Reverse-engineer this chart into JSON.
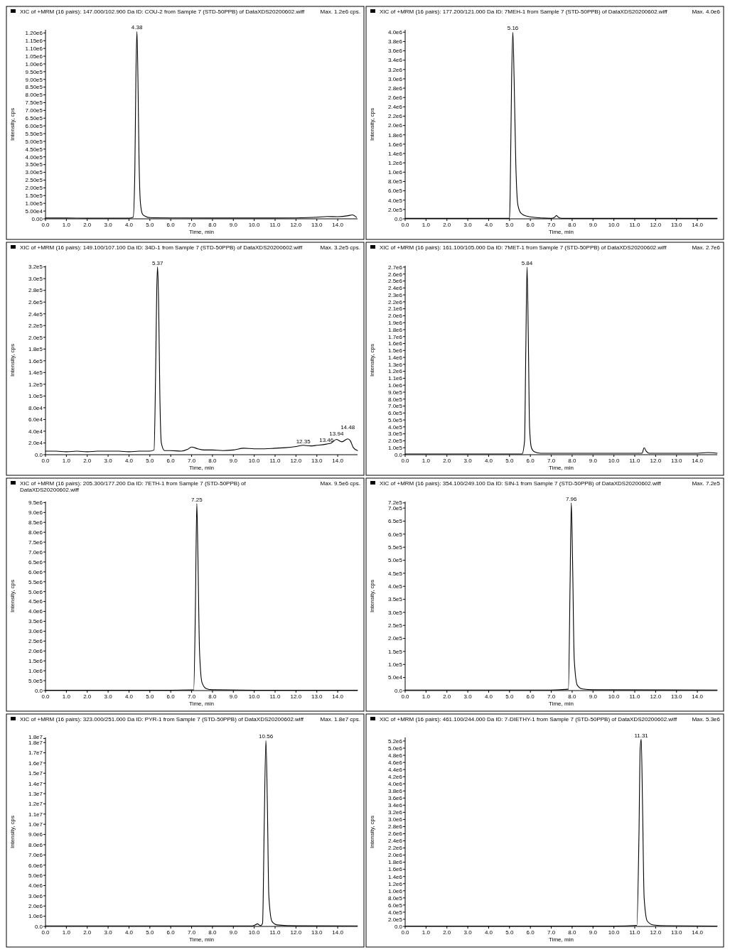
{
  "chart_data": [
    {
      "type": "line",
      "title": "XIC of +MRM (16 pairs): 147.000/102.900 Da ID: COU-2 from Sample 7 (STD-50PPB) of DataXDS20200602.wiff",
      "subtitle": "Max. 1.2e6 cps.",
      "xlabel": "Time, min",
      "ylabel": "Intensity, cps",
      "series": [
        {
          "color": "#000000",
          "x": [
            0,
            1,
            2,
            3,
            4,
            4.2,
            4.28,
            4.33,
            4.38,
            4.43,
            4.48,
            4.55,
            4.65,
            4.8,
            5,
            6,
            8,
            10,
            12,
            13,
            13.5,
            14,
            14.5,
            14.7,
            14.9
          ],
          "values": [
            5000,
            5000,
            4000,
            4000,
            4000,
            10000,
            300000,
            900000,
            1210000,
            900000,
            400000,
            100000,
            30000,
            15000,
            8000,
            6000,
            5000,
            5000,
            6000,
            10000,
            15000,
            14000,
            20000,
            25000,
            10000
          ]
        }
      ],
      "annotations": [
        {
          "text": "4.38",
          "x": 4.38,
          "y": 1210000
        }
      ],
      "xlim": [
        0,
        14.95
      ],
      "xticks": [
        {
          "value": 0,
          "label": "0.0"
        },
        {
          "value": 1,
          "label": "1.0"
        },
        {
          "value": 2,
          "label": "2.0"
        },
        {
          "value": 3,
          "label": "3.0"
        },
        {
          "value": 4,
          "label": "4.0"
        },
        {
          "value": 5,
          "label": "5.0"
        },
        {
          "value": 6,
          "label": "6.0"
        },
        {
          "value": 7,
          "label": "7.0"
        },
        {
          "value": 8,
          "label": "8.0"
        },
        {
          "value": 9,
          "label": "9.0"
        },
        {
          "value": 10,
          "label": "10.0"
        },
        {
          "value": 11,
          "label": "11.0"
        },
        {
          "value": 12,
          "label": "12.0"
        },
        {
          "value": 13,
          "label": "13.0"
        },
        {
          "value": 14,
          "label": "14.0"
        }
      ],
      "ylim": [
        0,
        1220000
      ],
      "yticks": [
        {
          "value": 0,
          "label": "0.00"
        },
        {
          "value": 50000,
          "label": "5.00e4"
        },
        {
          "value": 100000,
          "label": "1.00e5"
        },
        {
          "value": 150000,
          "label": "1.50e5"
        },
        {
          "value": 200000,
          "label": "2.00e5"
        },
        {
          "value": 250000,
          "label": "2.50e5"
        },
        {
          "value": 300000,
          "label": "3.00e5"
        },
        {
          "value": 350000,
          "label": "3.50e5"
        },
        {
          "value": 400000,
          "label": "4.00e5"
        },
        {
          "value": 450000,
          "label": "4.50e5"
        },
        {
          "value": 500000,
          "label": "5.00e5"
        },
        {
          "value": 550000,
          "label": "5.50e5"
        },
        {
          "value": 600000,
          "label": "6.00e5"
        },
        {
          "value": 650000,
          "label": "6.50e5"
        },
        {
          "value": 700000,
          "label": "7.00e5"
        },
        {
          "value": 750000,
          "label": "7.50e5"
        },
        {
          "value": 800000,
          "label": "8.00e5"
        },
        {
          "value": 850000,
          "label": "8.50e5"
        },
        {
          "value": 900000,
          "label": "9.00e5"
        },
        {
          "value": 950000,
          "label": "9.50e5"
        },
        {
          "value": 1000000,
          "label": "1.00e6"
        },
        {
          "value": 1050000,
          "label": "1.05e6"
        },
        {
          "value": 1100000,
          "label": "1.10e6"
        },
        {
          "value": 1150000,
          "label": "1.15e6"
        },
        {
          "value": 1200000,
          "label": "1.20e6"
        }
      ]
    },
    {
      "type": "line",
      "title": "XIC of +MRM (16 pairs): 177.200/121.000 Da ID: 7MEH-1 from Sample 7 (STD-50PPB) of DataXDS20200602.wiff",
      "subtitle": "Max. 4.0e6",
      "xlabel": "Time, min",
      "ylabel": "Intensity, cps",
      "series": [
        {
          "color": "#000000",
          "x": [
            0,
            2,
            4,
            5,
            5.03,
            5.1,
            5.16,
            5.22,
            5.3,
            5.4,
            5.55,
            5.8,
            6.2,
            7.0,
            7.15,
            7.25,
            7.35,
            7.5,
            9,
            11,
            13,
            14.95
          ],
          "values": [
            10000,
            10000,
            10000,
            10000,
            500000,
            3000000,
            4000000,
            3000000,
            1200000,
            300000,
            120000,
            60000,
            30000,
            10000,
            30000,
            70000,
            30000,
            10000,
            10000,
            10000,
            10000,
            10000
          ]
        }
      ],
      "annotations": [
        {
          "text": "5.16",
          "x": 5.16,
          "y": 4000000
        }
      ],
      "xlim": [
        0,
        14.95
      ],
      "xticks": [
        {
          "value": 0,
          "label": "0.0"
        },
        {
          "value": 1,
          "label": "1.0"
        },
        {
          "value": 2,
          "label": "2.0"
        },
        {
          "value": 3,
          "label": "3.0"
        },
        {
          "value": 4,
          "label": "4.0"
        },
        {
          "value": 5,
          "label": "5.0"
        },
        {
          "value": 6,
          "label": "6.0"
        },
        {
          "value": 7,
          "label": "7.0"
        },
        {
          "value": 8,
          "label": "8.0"
        },
        {
          "value": 9,
          "label": "9.0"
        },
        {
          "value": 10,
          "label": "10.0"
        },
        {
          "value": 11,
          "label": "11.0"
        },
        {
          "value": 12,
          "label": "12.0"
        },
        {
          "value": 13,
          "label": "13.0"
        },
        {
          "value": 14,
          "label": "14.0"
        }
      ],
      "ylim": [
        0,
        4050000
      ],
      "yticks": [
        {
          "value": 0,
          "label": "0.0"
        },
        {
          "value": 200000,
          "label": "2.0e5"
        },
        {
          "value": 400000,
          "label": "4.0e5"
        },
        {
          "value": 600000,
          "label": "6.0e5"
        },
        {
          "value": 800000,
          "label": "8.0e5"
        },
        {
          "value": 1000000,
          "label": "1.0e6"
        },
        {
          "value": 1200000,
          "label": "1.2e6"
        },
        {
          "value": 1400000,
          "label": "1.4e6"
        },
        {
          "value": 1600000,
          "label": "1.6e6"
        },
        {
          "value": 1800000,
          "label": "1.8e6"
        },
        {
          "value": 2000000,
          "label": "2.0e6"
        },
        {
          "value": 2200000,
          "label": "2.2e6"
        },
        {
          "value": 2400000,
          "label": "2.4e6"
        },
        {
          "value": 2600000,
          "label": "2.6e6"
        },
        {
          "value": 2800000,
          "label": "2.8e6"
        },
        {
          "value": 3000000,
          "label": "3.0e6"
        },
        {
          "value": 3200000,
          "label": "3.2e6"
        },
        {
          "value": 3400000,
          "label": "3.4e6"
        },
        {
          "value": 3600000,
          "label": "3.6e6"
        },
        {
          "value": 3800000,
          "label": "3.8e6"
        },
        {
          "value": 4000000,
          "label": "4.0e6"
        }
      ]
    },
    {
      "type": "line",
      "title": "XIC of +MRM (16 pairs): 149.100/107.100 Da ID: 34D-1 from Sample 7 (STD-50PPB) of DataXDS20200602.wiff",
      "subtitle": "Max. 3.2e5 cps.",
      "xlabel": "Time, min",
      "ylabel": "Intensity, cps",
      "series": [
        {
          "color": "#000000",
          "x": [
            0,
            0.5,
            1,
            1.5,
            2,
            2.5,
            3,
            3.5,
            4,
            4.5,
            5,
            5.2,
            5.28,
            5.33,
            5.37,
            5.42,
            5.48,
            5.55,
            5.7,
            6,
            6.5,
            6.8,
            7.0,
            7.3,
            7.6,
            8,
            8.5,
            9,
            9.5,
            10,
            10.5,
            11,
            11.5,
            12,
            12.35,
            12.7,
            13,
            13.46,
            13.7,
            13.94,
            14.2,
            14.48,
            14.6,
            14.75,
            14.95
          ],
          "values": [
            6000,
            6000,
            5000,
            6000,
            5000,
            6000,
            6000,
            6000,
            5000,
            6000,
            6000,
            8000,
            150000,
            280000,
            320000,
            260000,
            100000,
            20000,
            7000,
            7000,
            6000,
            9000,
            13000,
            10000,
            8000,
            8000,
            7000,
            8000,
            11000,
            10000,
            10000,
            11000,
            12000,
            14000,
            16000,
            15000,
            16000,
            18000,
            20000,
            26000,
            22000,
            27000,
            24000,
            12000,
            7000
          ]
        }
      ],
      "annotations": [
        {
          "text": "5.37",
          "x": 5.37,
          "y": 320000
        },
        {
          "text": "12.35",
          "x": 12.35,
          "y": 16000
        },
        {
          "text": "13.46",
          "x": 13.46,
          "y": 18000
        },
        {
          "text": "13.94",
          "x": 13.94,
          "y": 26000
        },
        {
          "text": "14.48",
          "x": 14.48,
          "y": 27000
        }
      ],
      "xlim": [
        0,
        14.95
      ],
      "xticks": [
        {
          "value": 0,
          "label": "0.0"
        },
        {
          "value": 1,
          "label": "1.0"
        },
        {
          "value": 2,
          "label": "2.0"
        },
        {
          "value": 3,
          "label": "3.0"
        },
        {
          "value": 4,
          "label": "4.0"
        },
        {
          "value": 5,
          "label": "5.0"
        },
        {
          "value": 6,
          "label": "6.0"
        },
        {
          "value": 7,
          "label": "7.0"
        },
        {
          "value": 8,
          "label": "8.0"
        },
        {
          "value": 9,
          "label": "9.0"
        },
        {
          "value": 10,
          "label": "10.0"
        },
        {
          "value": 11,
          "label": "11.0"
        },
        {
          "value": 12,
          "label": "12.0"
        },
        {
          "value": 13,
          "label": "13.0"
        },
        {
          "value": 14,
          "label": "14.0"
        }
      ],
      "ylim": [
        0,
        322000
      ],
      "yticks": [
        {
          "value": 0,
          "label": "0.0"
        },
        {
          "value": 20000,
          "label": "2.0e4"
        },
        {
          "value": 40000,
          "label": "4.0e4"
        },
        {
          "value": 60000,
          "label": "6.0e4"
        },
        {
          "value": 80000,
          "label": "8.0e4"
        },
        {
          "value": 100000,
          "label": "1.0e5"
        },
        {
          "value": 120000,
          "label": "1.2e5"
        },
        {
          "value": 140000,
          "label": "1.4e5"
        },
        {
          "value": 160000,
          "label": "1.6e5"
        },
        {
          "value": 180000,
          "label": "1.8e5"
        },
        {
          "value": 200000,
          "label": "2.0e5"
        },
        {
          "value": 220000,
          "label": "2.2e5"
        },
        {
          "value": 240000,
          "label": "2.4e5"
        },
        {
          "value": 260000,
          "label": "2.6e5"
        },
        {
          "value": 280000,
          "label": "2.8e5"
        },
        {
          "value": 300000,
          "label": "3.0e5"
        },
        {
          "value": 320000,
          "label": "3.2e5"
        }
      ]
    },
    {
      "type": "line",
      "title": "XIC of +MRM (16 pairs): 161.100/105.000 Da ID: 7MET-1 from Sample 7 (STD-50PPB) of DataXDS20200602.wiff",
      "subtitle": "Max. 2.7e6",
      "xlabel": "Time, min",
      "ylabel": "Intensity, cps",
      "series": [
        {
          "color": "#000000",
          "x": [
            0,
            3,
            5.6,
            5.72,
            5.78,
            5.84,
            5.9,
            5.96,
            6.05,
            6.2,
            6.5,
            8,
            11,
            11.35,
            11.45,
            11.55,
            11.7,
            12,
            14,
            14.5,
            14.95
          ],
          "values": [
            10000,
            10000,
            10000,
            200000,
            1500000,
            2700000,
            1700000,
            400000,
            100000,
            40000,
            20000,
            20000,
            20000,
            20000,
            100000,
            50000,
            20000,
            20000,
            20000,
            30000,
            20000
          ]
        }
      ],
      "annotations": [
        {
          "text": "5.84",
          "x": 5.84,
          "y": 2700000
        }
      ],
      "xlim": [
        0,
        14.95
      ],
      "xticks": [
        {
          "value": 0,
          "label": "0.0"
        },
        {
          "value": 1,
          "label": "1.0"
        },
        {
          "value": 2,
          "label": "2.0"
        },
        {
          "value": 3,
          "label": "3.0"
        },
        {
          "value": 4,
          "label": "4.0"
        },
        {
          "value": 5,
          "label": "5.0"
        },
        {
          "value": 6,
          "label": "6.0"
        },
        {
          "value": 7,
          "label": "7.0"
        },
        {
          "value": 8,
          "label": "8.0"
        },
        {
          "value": 9,
          "label": "9.0"
        },
        {
          "value": 10,
          "label": "10.0"
        },
        {
          "value": 11,
          "label": "11.0"
        },
        {
          "value": 12,
          "label": "12.0"
        },
        {
          "value": 13,
          "label": "13.0"
        },
        {
          "value": 14,
          "label": "14.0"
        }
      ],
      "ylim": [
        0,
        2720000
      ],
      "yticks": [
        {
          "value": 0,
          "label": "0.0"
        },
        {
          "value": 100000,
          "label": "1.0e5"
        },
        {
          "value": 200000,
          "label": "2.0e5"
        },
        {
          "value": 300000,
          "label": "3.0e5"
        },
        {
          "value": 400000,
          "label": "4.0e5"
        },
        {
          "value": 500000,
          "label": "5.0e5"
        },
        {
          "value": 600000,
          "label": "6.0e5"
        },
        {
          "value": 700000,
          "label": "7.0e5"
        },
        {
          "value": 800000,
          "label": "8.0e5"
        },
        {
          "value": 900000,
          "label": "9.0e5"
        },
        {
          "value": 1000000,
          "label": "1.0e6"
        },
        {
          "value": 1100000,
          "label": "1.1e6"
        },
        {
          "value": 1200000,
          "label": "1.2e6"
        },
        {
          "value": 1300000,
          "label": "1.3e6"
        },
        {
          "value": 1400000,
          "label": "1.4e6"
        },
        {
          "value": 1500000,
          "label": "1.5e6"
        },
        {
          "value": 1600000,
          "label": "1.6e6"
        },
        {
          "value": 1700000,
          "label": "1.7e6"
        },
        {
          "value": 1800000,
          "label": "1.8e6"
        },
        {
          "value": 1900000,
          "label": "1.9e6"
        },
        {
          "value": 2000000,
          "label": "2.0e6"
        },
        {
          "value": 2100000,
          "label": "2.1e6"
        },
        {
          "value": 2200000,
          "label": "2.2e6"
        },
        {
          "value": 2300000,
          "label": "2.3e6"
        },
        {
          "value": 2400000,
          "label": "2.4e6"
        },
        {
          "value": 2500000,
          "label": "2.5e6"
        },
        {
          "value": 2600000,
          "label": "2.6e6"
        },
        {
          "value": 2700000,
          "label": "2.7e6"
        }
      ]
    },
    {
      "type": "line",
      "title": "XIC of +MRM (16 pairs): 205.300/177.200 Da ID: 7ETH-1 from Sample 7 (STD-50PPB) of DataXDS20200602.wiff",
      "subtitle": "Max. 9.5e6 cps.",
      "xlabel": "Time, min",
      "ylabel": "Intensity, cps",
      "series": [
        {
          "color": "#000000",
          "x": [
            0,
            6,
            7.1,
            7.18,
            7.25,
            7.3,
            7.38,
            7.5,
            7.7,
            8,
            10,
            14.95
          ],
          "values": [
            20000,
            20000,
            30000,
            4000000,
            9450000,
            7000000,
            2000000,
            400000,
            100000,
            40000,
            20000,
            20000
          ]
        }
      ],
      "annotations": [
        {
          "text": "7.25",
          "x": 7.25,
          "y": 9450000
        }
      ],
      "xlim": [
        0,
        14.95
      ],
      "xticks": [
        {
          "value": 0,
          "label": "0.0"
        },
        {
          "value": 1,
          "label": "1.0"
        },
        {
          "value": 2,
          "label": "2.0"
        },
        {
          "value": 3,
          "label": "3.0"
        },
        {
          "value": 4,
          "label": "4.0"
        },
        {
          "value": 5,
          "label": "5.0"
        },
        {
          "value": 6,
          "label": "6.0"
        },
        {
          "value": 7,
          "label": "7.0"
        },
        {
          "value": 8,
          "label": "8.0"
        },
        {
          "value": 9,
          "label": "9.0"
        },
        {
          "value": 10,
          "label": "10.0"
        },
        {
          "value": 11,
          "label": "11.0"
        },
        {
          "value": 12,
          "label": "12.0"
        },
        {
          "value": 13,
          "label": "13.0"
        },
        {
          "value": 14,
          "label": "14.0"
        }
      ],
      "ylim": [
        0,
        9550000
      ],
      "yticks": [
        {
          "value": 0,
          "label": "0.0"
        },
        {
          "value": 500000,
          "label": "5.0e5"
        },
        {
          "value": 1000000,
          "label": "1.0e6"
        },
        {
          "value": 1500000,
          "label": "1.5e6"
        },
        {
          "value": 2000000,
          "label": "2.0e6"
        },
        {
          "value": 2500000,
          "label": "2.5e6"
        },
        {
          "value": 3000000,
          "label": "3.0e6"
        },
        {
          "value": 3500000,
          "label": "3.5e6"
        },
        {
          "value": 4000000,
          "label": "4.0e6"
        },
        {
          "value": 4500000,
          "label": "4.5e6"
        },
        {
          "value": 5000000,
          "label": "5.0e6"
        },
        {
          "value": 5500000,
          "label": "5.5e6"
        },
        {
          "value": 6000000,
          "label": "6.0e6"
        },
        {
          "value": 6500000,
          "label": "6.5e6"
        },
        {
          "value": 7000000,
          "label": "7.0e6"
        },
        {
          "value": 7500000,
          "label": "7.5e6"
        },
        {
          "value": 8000000,
          "label": "8.0e6"
        },
        {
          "value": 8500000,
          "label": "8.5e6"
        },
        {
          "value": 9000000,
          "label": "9.0e6"
        },
        {
          "value": 9500000,
          "label": "9.5e6"
        }
      ]
    },
    {
      "type": "line",
      "title": "XIC of +MRM (16 pairs): 354.100/249.100 Da ID: SIN-1 from Sample 7 (STD-50PPB) of DataXDS20200602.wiff",
      "subtitle": "Max. 7.2e5",
      "xlabel": "Time, min",
      "ylabel": "Intensity, cps",
      "series": [
        {
          "color": "#000000",
          "x": [
            0,
            7,
            7.82,
            7.9,
            7.96,
            8.02,
            8.1,
            8.25,
            8.5,
            9,
            14.95
          ],
          "values": [
            2000,
            2000,
            5000,
            400000,
            720000,
            500000,
            120000,
            20000,
            6000,
            3000,
            2000
          ]
        }
      ],
      "annotations": [
        {
          "text": "7.96",
          "x": 7.96,
          "y": 720000
        }
      ],
      "xlim": [
        0,
        14.95
      ],
      "xticks": [
        {
          "value": 0,
          "label": "0.0"
        },
        {
          "value": 1,
          "label": "1.0"
        },
        {
          "value": 2,
          "label": "2.0"
        },
        {
          "value": 3,
          "label": "3.0"
        },
        {
          "value": 4,
          "label": "4.0"
        },
        {
          "value": 5,
          "label": "5.0"
        },
        {
          "value": 6,
          "label": "6.0"
        },
        {
          "value": 7,
          "label": "7.0"
        },
        {
          "value": 8,
          "label": "8.0"
        },
        {
          "value": 9,
          "label": "9.0"
        },
        {
          "value": 10,
          "label": "10.0"
        },
        {
          "value": 11,
          "label": "11.0"
        },
        {
          "value": 12,
          "label": "12.0"
        },
        {
          "value": 13,
          "label": "13.0"
        },
        {
          "value": 14,
          "label": "14.0"
        }
      ],
      "ylim": [
        0,
        725000
      ],
      "yticks": [
        {
          "value": 0,
          "label": "0.0"
        },
        {
          "value": 50000,
          "label": "5.0e4"
        },
        {
          "value": 100000,
          "label": "1.0e5"
        },
        {
          "value": 150000,
          "label": "1.5e5"
        },
        {
          "value": 200000,
          "label": "2.0e5"
        },
        {
          "value": 250000,
          "label": "2.5e5"
        },
        {
          "value": 300000,
          "label": "3.0e5"
        },
        {
          "value": 350000,
          "label": "3.5e5"
        },
        {
          "value": 400000,
          "label": "4.0e5"
        },
        {
          "value": 450000,
          "label": "4.5e5"
        },
        {
          "value": 500000,
          "label": "5.0e5"
        },
        {
          "value": 550000,
          "label": "5.5e5"
        },
        {
          "value": 600000,
          "label": "6.0e5"
        },
        {
          "value": 650000,
          "label": "6.5e5"
        },
        {
          "value": 700000,
          "label": "7.0e5"
        },
        {
          "value": 720000,
          "label": "7.2e5"
        }
      ]
    },
    {
      "type": "line",
      "title": "XIC of +MRM (16 pairs): 323.000/251.000 Da ID: PYR-1 from Sample 7 (STD-50PPB) of DataXDS20200602.wiff",
      "subtitle": "Max. 1.8e7 cps.",
      "xlabel": "Time, min",
      "ylabel": "Intensity, cps",
      "series": [
        {
          "color": "#000000",
          "x": [
            0,
            9.9,
            10.05,
            10.15,
            10.3,
            10.4,
            10.48,
            10.56,
            10.63,
            10.7,
            10.85,
            11.1,
            12,
            14.95
          ],
          "values": [
            50000,
            50000,
            150000,
            250000,
            80000,
            300000,
            10000000,
            18200000,
            12000000,
            3000000,
            500000,
            150000,
            60000,
            50000
          ]
        }
      ],
      "annotations": [
        {
          "text": "10.56",
          "x": 10.56,
          "y": 18200000
        }
      ],
      "xlim": [
        0,
        14.95
      ],
      "xticks": [
        {
          "value": 0,
          "label": "0.0"
        },
        {
          "value": 1,
          "label": "1.0"
        },
        {
          "value": 2,
          "label": "2.0"
        },
        {
          "value": 3,
          "label": "3.0"
        },
        {
          "value": 4,
          "label": "4.0"
        },
        {
          "value": 5,
          "label": "5.0"
        },
        {
          "value": 6,
          "label": "6.0"
        },
        {
          "value": 7,
          "label": "7.0"
        },
        {
          "value": 8,
          "label": "8.0"
        },
        {
          "value": 9,
          "label": "9.0"
        },
        {
          "value": 10,
          "label": "10.0"
        },
        {
          "value": 11,
          "label": "11.0"
        },
        {
          "value": 12,
          "label": "12.0"
        },
        {
          "value": 13,
          "label": "13.0"
        },
        {
          "value": 14,
          "label": "14.0"
        }
      ],
      "ylim": [
        0,
        18500000
      ],
      "yticks": [
        {
          "value": 0,
          "label": "0.0"
        },
        {
          "value": 1000000,
          "label": "1.0e6"
        },
        {
          "value": 2000000,
          "label": "2.0e6"
        },
        {
          "value": 3000000,
          "label": "3.0e6"
        },
        {
          "value": 4000000,
          "label": "4.0e6"
        },
        {
          "value": 5000000,
          "label": "5.0e6"
        },
        {
          "value": 6000000,
          "label": "6.0e6"
        },
        {
          "value": 7000000,
          "label": "7.0e6"
        },
        {
          "value": 8000000,
          "label": "8.0e6"
        },
        {
          "value": 9000000,
          "label": "9.0e6"
        },
        {
          "value": 10000000,
          "label": "1.0e7"
        },
        {
          "value": 11000000,
          "label": "1.1e7"
        },
        {
          "value": 12000000,
          "label": "1.2e7"
        },
        {
          "value": 13000000,
          "label": "1.3e7"
        },
        {
          "value": 14000000,
          "label": "1.4e7"
        },
        {
          "value": 15000000,
          "label": "1.5e7"
        },
        {
          "value": 16000000,
          "label": "1.6e7"
        },
        {
          "value": 17000000,
          "label": "1.7e7"
        },
        {
          "value": 18000000,
          "label": "1.8e7"
        },
        {
          "value": 18400000,
          "label": "1.8e7"
        }
      ]
    },
    {
      "type": "line",
      "title": "XIC of +MRM (16 pairs): 461.100/244.000 Da ID: 7-DIETHY-1 from Sample 7 (STD-50PPB) of DataXDS20200602.wiff",
      "subtitle": "Max. 5.3e6",
      "xlabel": "Time, min",
      "ylabel": "Intensity, cps",
      "series": [
        {
          "color": "#000000",
          "x": [
            0,
            10,
            11.1,
            11.2,
            11.26,
            11.31,
            11.37,
            11.45,
            11.6,
            11.9,
            12.5,
            14.95
          ],
          "values": [
            10000,
            10000,
            30000,
            2500000,
            5000000,
            5250000,
            3500000,
            800000,
            150000,
            40000,
            20000,
            10000
          ]
        }
      ],
      "annotations": [
        {
          "text": "11.31",
          "x": 11.31,
          "y": 5250000
        }
      ],
      "xlim": [
        0,
        14.95
      ],
      "xticks": [
        {
          "value": 0,
          "label": "0.0"
        },
        {
          "value": 1,
          "label": "1.0"
        },
        {
          "value": 2,
          "label": "2.0"
        },
        {
          "value": 3,
          "label": "3.0"
        },
        {
          "value": 4,
          "label": "4.0"
        },
        {
          "value": 5,
          "label": "5.0"
        },
        {
          "value": 6,
          "label": "6.0"
        },
        {
          "value": 7,
          "label": "7.0"
        },
        {
          "value": 8,
          "label": "8.0"
        },
        {
          "value": 9,
          "label": "9.0"
        },
        {
          "value": 10,
          "label": "10.0"
        },
        {
          "value": 11,
          "label": "11.0"
        },
        {
          "value": 12,
          "label": "12.0"
        },
        {
          "value": 13,
          "label": "13.0"
        },
        {
          "value": 14,
          "label": "14.0"
        }
      ],
      "ylim": [
        0,
        5300000
      ],
      "yticks": [
        {
          "value": 0,
          "label": "0.0"
        },
        {
          "value": 200000,
          "label": "2.0e5"
        },
        {
          "value": 400000,
          "label": "4.0e5"
        },
        {
          "value": 600000,
          "label": "6.0e5"
        },
        {
          "value": 800000,
          "label": "8.0e5"
        },
        {
          "value": 1000000,
          "label": "1.0e6"
        },
        {
          "value": 1200000,
          "label": "1.2e6"
        },
        {
          "value": 1400000,
          "label": "1.4e6"
        },
        {
          "value": 1600000,
          "label": "1.6e6"
        },
        {
          "value": 1800000,
          "label": "1.8e6"
        },
        {
          "value": 2000000,
          "label": "2.0e6"
        },
        {
          "value": 2200000,
          "label": "2.2e6"
        },
        {
          "value": 2400000,
          "label": "2.4e6"
        },
        {
          "value": 2600000,
          "label": "2.6e6"
        },
        {
          "value": 2800000,
          "label": "2.8e6"
        },
        {
          "value": 3000000,
          "label": "3.0e6"
        },
        {
          "value": 3200000,
          "label": "3.2e6"
        },
        {
          "value": 3400000,
          "label": "3.4e6"
        },
        {
          "value": 3600000,
          "label": "3.6e6"
        },
        {
          "value": 3800000,
          "label": "3.8e6"
        },
        {
          "value": 4000000,
          "label": "4.0e6"
        },
        {
          "value": 4200000,
          "label": "4.2e6"
        },
        {
          "value": 4400000,
          "label": "4.4e6"
        },
        {
          "value": 4600000,
          "label": "4.6e6"
        },
        {
          "value": 4800000,
          "label": "4.8e6"
        },
        {
          "value": 5000000,
          "label": "5.0e6"
        },
        {
          "value": 5200000,
          "label": "5.2e6"
        }
      ]
    }
  ]
}
